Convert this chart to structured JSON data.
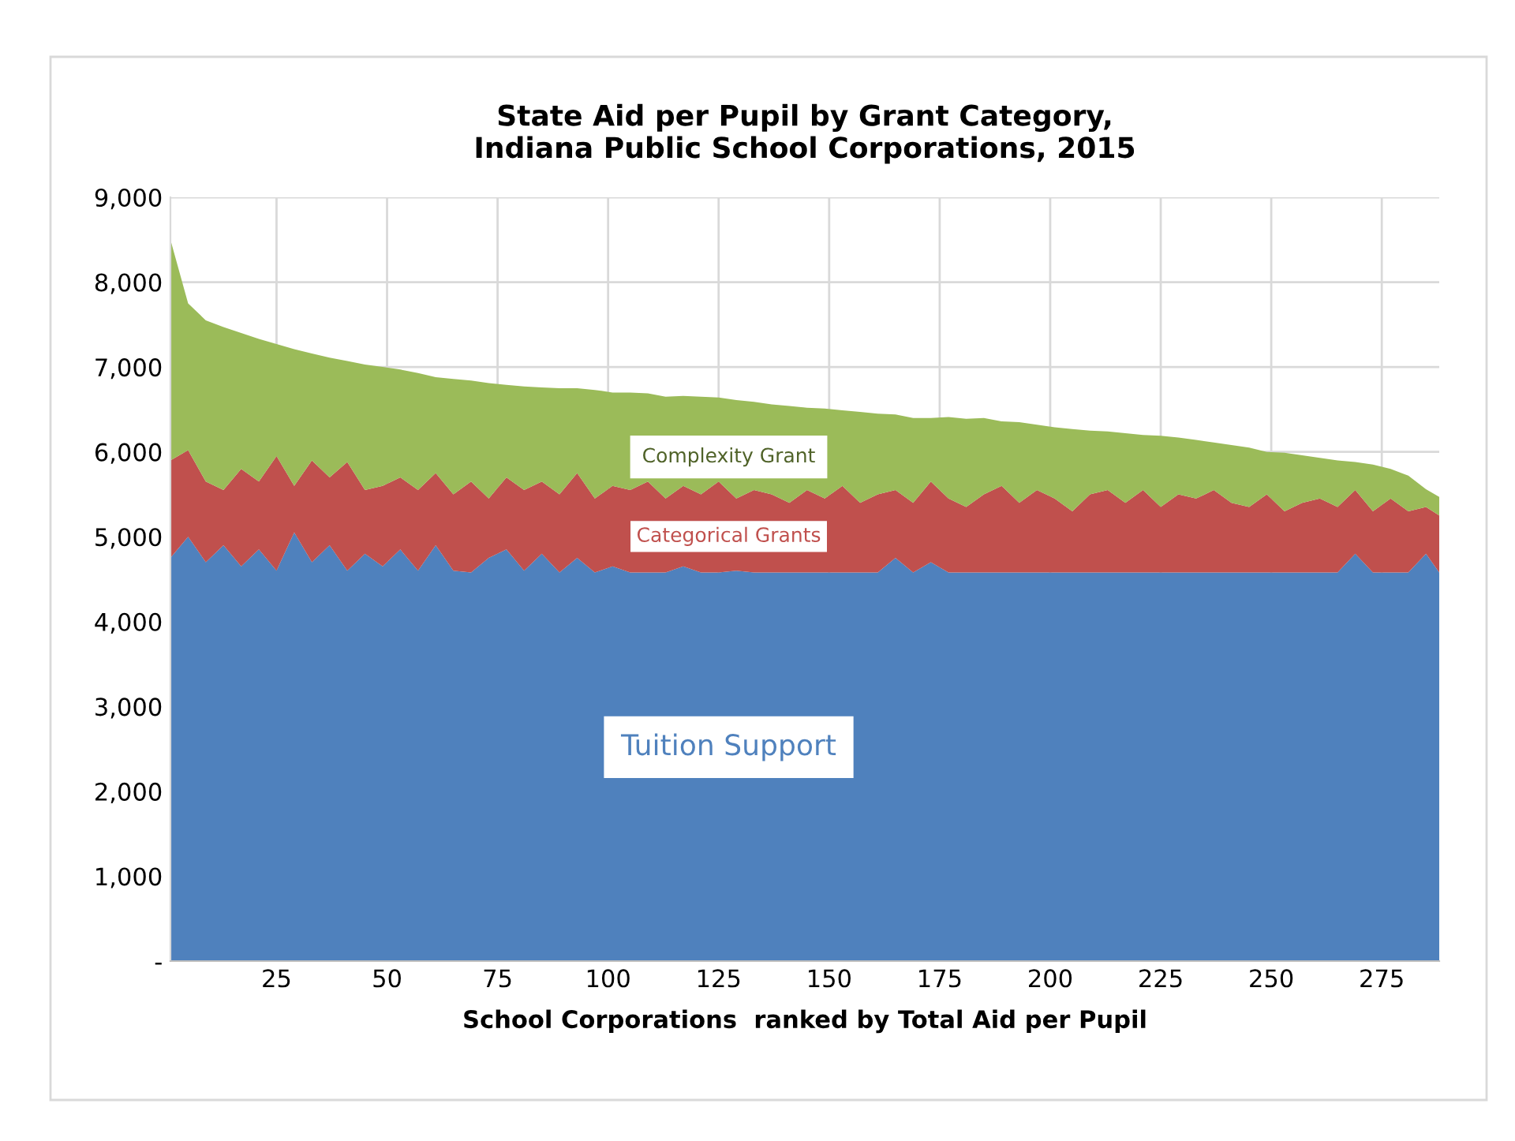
{
  "chart_data": {
    "type": "area",
    "stacked": true,
    "title": "State Aid per Pupil by Grant Category,\nIndiana Public School Corporations, 2015",
    "xlabel": "School Corporations  ranked by Total Aid per Pupil",
    "x": [
      1,
      5,
      9,
      13,
      17,
      21,
      25,
      29,
      33,
      37,
      41,
      45,
      49,
      53,
      57,
      61,
      65,
      69,
      73,
      77,
      81,
      85,
      89,
      93,
      97,
      101,
      105,
      109,
      113,
      117,
      121,
      125,
      129,
      133,
      137,
      141,
      145,
      149,
      153,
      157,
      161,
      165,
      169,
      173,
      177,
      181,
      185,
      189,
      193,
      197,
      201,
      205,
      209,
      213,
      217,
      221,
      225,
      229,
      233,
      237,
      241,
      245,
      249,
      253,
      257,
      261,
      265,
      269,
      273,
      277,
      281,
      285,
      288
    ],
    "xlim": [
      1,
      288
    ],
    "xticks": [
      25,
      50,
      75,
      100,
      125,
      150,
      175,
      200,
      225,
      250,
      275
    ],
    "ylim": [
      0,
      9000
    ],
    "yticks": [
      {
        "value": 0,
        "label": "-"
      },
      {
        "value": 1000,
        "label": "1,000"
      },
      {
        "value": 2000,
        "label": "2,000"
      },
      {
        "value": 3000,
        "label": "3,000"
      },
      {
        "value": 4000,
        "label": "4,000"
      },
      {
        "value": 5000,
        "label": "5,000"
      },
      {
        "value": 6000,
        "label": "6,000"
      },
      {
        "value": 7000,
        "label": "7,000"
      },
      {
        "value": 8000,
        "label": "8,000"
      },
      {
        "value": 9000,
        "label": "9,000"
      }
    ],
    "grid": true,
    "series": [
      {
        "name": "Tuition Support",
        "color": "#4f81bd",
        "values": [
          4750,
          5000,
          4700,
          4900,
          4650,
          4850,
          4600,
          5050,
          4700,
          4900,
          4600,
          4800,
          4650,
          4850,
          4600,
          4900,
          4600,
          4580,
          4750,
          4850,
          4600,
          4800,
          4580,
          4750,
          4580,
          4650,
          4580,
          4580,
          4580,
          4650,
          4580,
          4580,
          4600,
          4580,
          4580,
          4580,
          4580,
          4580,
          4580,
          4580,
          4580,
          4750,
          4580,
          4700,
          4580,
          4580,
          4580,
          4580,
          4580,
          4580,
          4580,
          4580,
          4580,
          4580,
          4580,
          4580,
          4580,
          4580,
          4580,
          4580,
          4580,
          4580,
          4580,
          4580,
          4580,
          4580,
          4580,
          4800,
          4580,
          4580,
          4580,
          4800,
          4580
        ]
      },
      {
        "name": "Categorical Grants",
        "color": "#c0504d",
        "values": [
          1150,
          1020,
          950,
          650,
          1150,
          800,
          1350,
          550,
          1200,
          800,
          1280,
          750,
          950,
          850,
          950,
          850,
          900,
          1070,
          700,
          850,
          950,
          850,
          920,
          1000,
          870,
          950,
          970,
          1070,
          870,
          950,
          920,
          1070,
          850,
          970,
          920,
          820,
          970,
          870,
          1020,
          820,
          920,
          800,
          820,
          950,
          870,
          770,
          920,
          1020,
          820,
          970,
          870,
          720,
          920,
          970,
          820,
          970,
          770,
          920,
          870,
          970,
          820,
          770,
          920,
          720,
          820,
          870,
          770,
          750,
          720,
          870,
          720,
          550,
          670
        ]
      },
      {
        "name": "Complexity Grant",
        "color": "#9bbb59",
        "values": [
          2600,
          1730,
          1900,
          1920,
          1600,
          1680,
          1320,
          1610,
          1260,
          1410,
          1190,
          1480,
          1400,
          1270,
          1380,
          1130,
          1360,
          1190,
          1360,
          1090,
          1220,
          1110,
          1250,
          1000,
          1280,
          1100,
          1150,
          1040,
          1200,
          1060,
          1150,
          990,
          1160,
          1040,
          1060,
          1140,
          970,
          1060,
          890,
          1070,
          950,
          890,
          1000,
          750,
          960,
          1040,
          900,
          760,
          950,
          770,
          840,
          970,
          750,
          690,
          820,
          650,
          840,
          670,
          690,
          560,
          680,
          700,
          500,
          690,
          560,
          480,
          550,
          330,
          550,
          350,
          420,
          210,
          220
        ]
      }
    ]
  }
}
